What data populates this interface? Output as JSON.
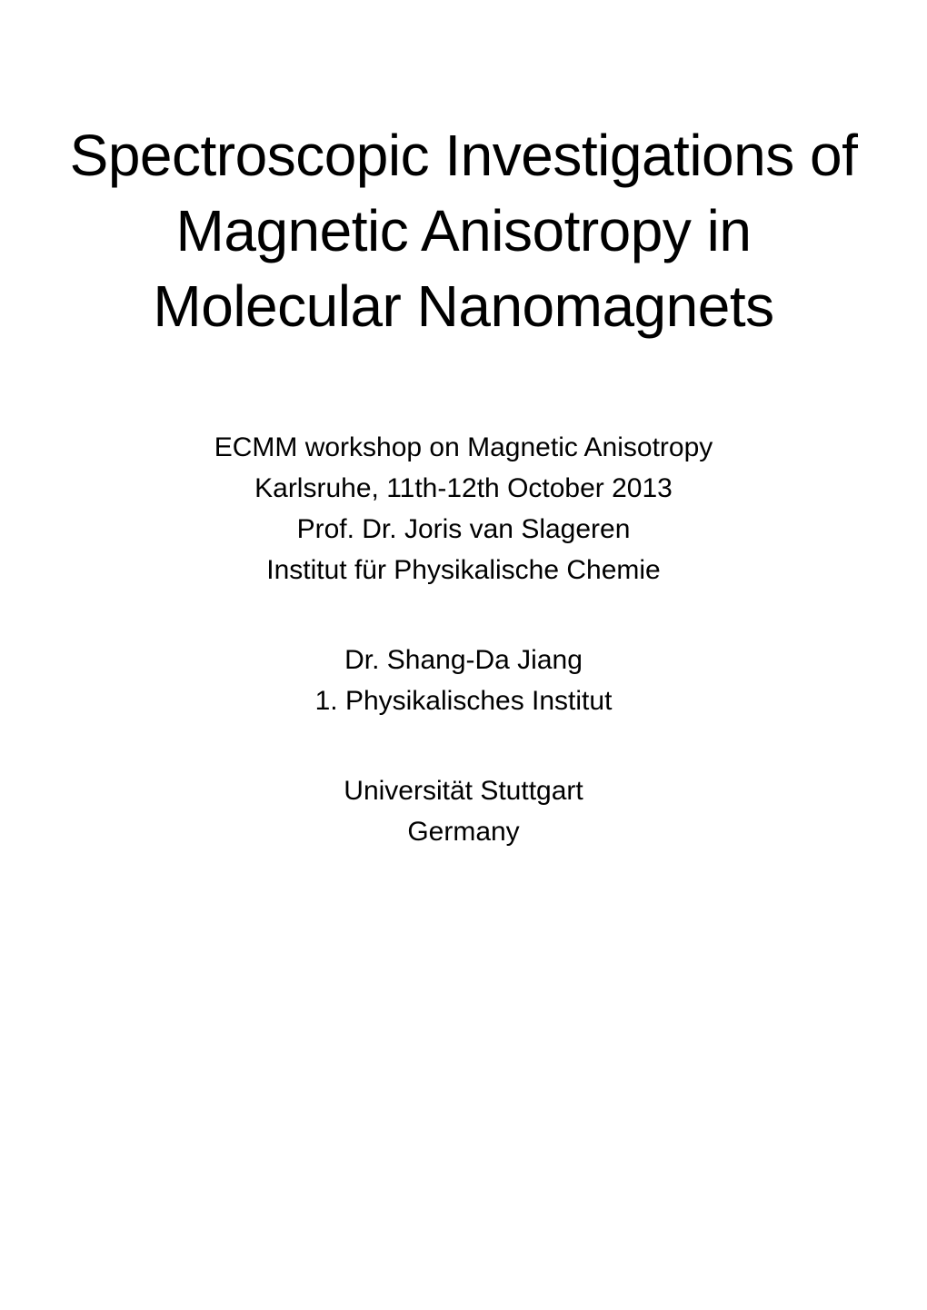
{
  "title": {
    "line1": "Spectroscopic Investigations of",
    "line2": "Magnetic Anisotropy in",
    "line3": "Molecular Nanomagnets"
  },
  "event": {
    "name": "ECMM workshop on Magnetic Anisotropy",
    "location_date": "Karlsruhe, 11th-12th October 2013",
    "presenter": "Prof. Dr. Joris van Slageren",
    "institute": "Institut für Physikalische Chemie"
  },
  "coauthor": {
    "name": "Dr. Shang-Da Jiang",
    "institute": "1. Physikalisches Institut"
  },
  "affiliation": {
    "university": "Universität Stuttgart",
    "country": "Germany"
  },
  "styling": {
    "background_color": "#ffffff",
    "text_color": "#000000",
    "title_fontsize": 64,
    "body_fontsize": 30,
    "font_weight": 300
  }
}
